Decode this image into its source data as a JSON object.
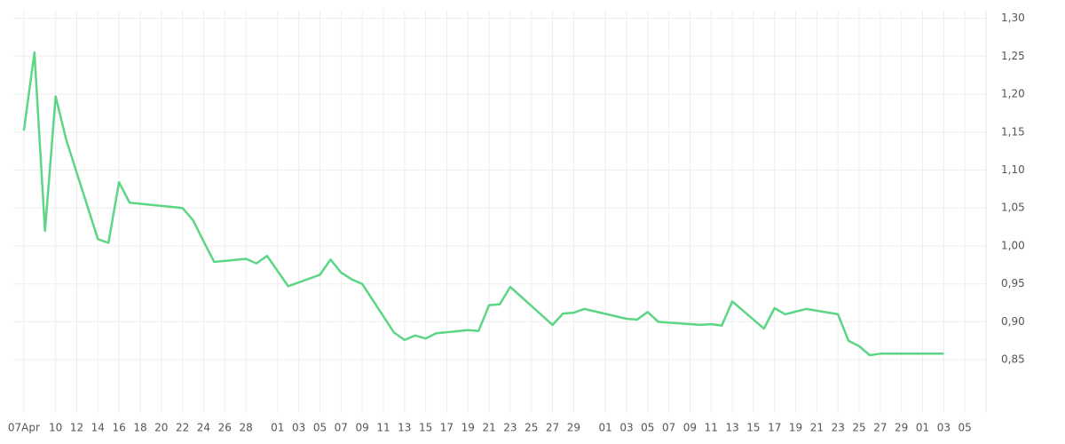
{
  "chart_data": {
    "type": "line",
    "color": "#5cd685",
    "grid": true,
    "x": [
      "04-07",
      "04-08",
      "04-09",
      "04-10",
      "04-11",
      "04-14",
      "04-15",
      "04-16",
      "04-17",
      "04-22",
      "04-23",
      "04-24",
      "04-25",
      "04-28",
      "04-29",
      "04-30",
      "05-02",
      "05-05",
      "05-06",
      "05-07",
      "05-08",
      "05-09",
      "05-12",
      "05-13",
      "05-14",
      "05-15",
      "05-16",
      "05-19",
      "05-20",
      "05-21",
      "05-22",
      "05-23",
      "05-27",
      "05-28",
      "05-29",
      "05-30",
      "06-03",
      "06-04",
      "06-05",
      "06-06",
      "06-10",
      "06-11",
      "06-12",
      "06-13",
      "06-16",
      "06-17",
      "06-18",
      "06-20",
      "06-23",
      "06-24",
      "06-25",
      "06-26",
      "06-27",
      "07-03"
    ],
    "values": [
      1.152,
      1.255,
      1.02,
      1.197,
      1.14,
      1.009,
      1.004,
      1.084,
      1.057,
      1.05,
      1.034,
      1.006,
      0.979,
      0.983,
      0.977,
      0.987,
      0.947,
      0.962,
      0.982,
      0.965,
      0.956,
      0.95,
      0.886,
      0.876,
      0.882,
      0.878,
      0.885,
      0.889,
      0.888,
      0.922,
      0.923,
      0.946,
      0.896,
      0.911,
      0.912,
      0.917,
      0.904,
      0.903,
      0.913,
      0.9,
      0.896,
      0.897,
      0.895,
      0.927,
      0.891,
      0.918,
      0.91,
      0.917,
      0.91,
      0.875,
      0.868,
      0.856,
      0.858,
      0.858
    ],
    "xlim": [
      "04-06",
      "07-07"
    ],
    "xticks": [
      {
        "value": "04-07",
        "label": "07Apr"
      },
      {
        "value": "04-10",
        "label": "10"
      },
      {
        "value": "04-12",
        "label": "12"
      },
      {
        "value": "04-14",
        "label": "14"
      },
      {
        "value": "04-16",
        "label": "16"
      },
      {
        "value": "04-18",
        "label": "18"
      },
      {
        "value": "04-20",
        "label": "20"
      },
      {
        "value": "04-22",
        "label": "22"
      },
      {
        "value": "04-24",
        "label": "24"
      },
      {
        "value": "04-26",
        "label": "26"
      },
      {
        "value": "04-28",
        "label": "28"
      },
      {
        "value": "05-01",
        "label": "01"
      },
      {
        "value": "05-03",
        "label": "03"
      },
      {
        "value": "05-05",
        "label": "05"
      },
      {
        "value": "05-07",
        "label": "07"
      },
      {
        "value": "05-09",
        "label": "09"
      },
      {
        "value": "05-11",
        "label": "11"
      },
      {
        "value": "05-13",
        "label": "13"
      },
      {
        "value": "05-15",
        "label": "15"
      },
      {
        "value": "05-17",
        "label": "17"
      },
      {
        "value": "05-19",
        "label": "19"
      },
      {
        "value": "05-21",
        "label": "21"
      },
      {
        "value": "05-23",
        "label": "23"
      },
      {
        "value": "05-25",
        "label": "25"
      },
      {
        "value": "05-27",
        "label": "27"
      },
      {
        "value": "05-29",
        "label": "29"
      },
      {
        "value": "06-01",
        "label": "01"
      },
      {
        "value": "06-03",
        "label": "03"
      },
      {
        "value": "06-05",
        "label": "05"
      },
      {
        "value": "06-07",
        "label": "07"
      },
      {
        "value": "06-09",
        "label": "09"
      },
      {
        "value": "06-11",
        "label": "11"
      },
      {
        "value": "06-13",
        "label": "13"
      },
      {
        "value": "06-15",
        "label": "15"
      },
      {
        "value": "06-17",
        "label": "17"
      },
      {
        "value": "06-19",
        "label": "19"
      },
      {
        "value": "06-21",
        "label": "21"
      },
      {
        "value": "06-23",
        "label": "23"
      },
      {
        "value": "06-25",
        "label": "25"
      },
      {
        "value": "06-27",
        "label": "27"
      },
      {
        "value": "06-29",
        "label": "29"
      },
      {
        "value": "07-01",
        "label": "01"
      },
      {
        "value": "07-03",
        "label": "03"
      },
      {
        "value": "07-05",
        "label": "05"
      }
    ],
    "ylim": [
      0.78,
      1.31
    ],
    "yticks": [
      {
        "value": 0.85,
        "label": "0,85"
      },
      {
        "value": 0.9,
        "label": "0,90"
      },
      {
        "value": 0.95,
        "label": "0,95"
      },
      {
        "value": 1.0,
        "label": "1,00"
      },
      {
        "value": 1.05,
        "label": "1,05"
      },
      {
        "value": 1.1,
        "label": "1,10"
      },
      {
        "value": 1.15,
        "label": "1,15"
      },
      {
        "value": 1.2,
        "label": "1,20"
      },
      {
        "value": 1.25,
        "label": "1,25"
      },
      {
        "value": 1.3,
        "label": "1,30"
      }
    ]
  }
}
